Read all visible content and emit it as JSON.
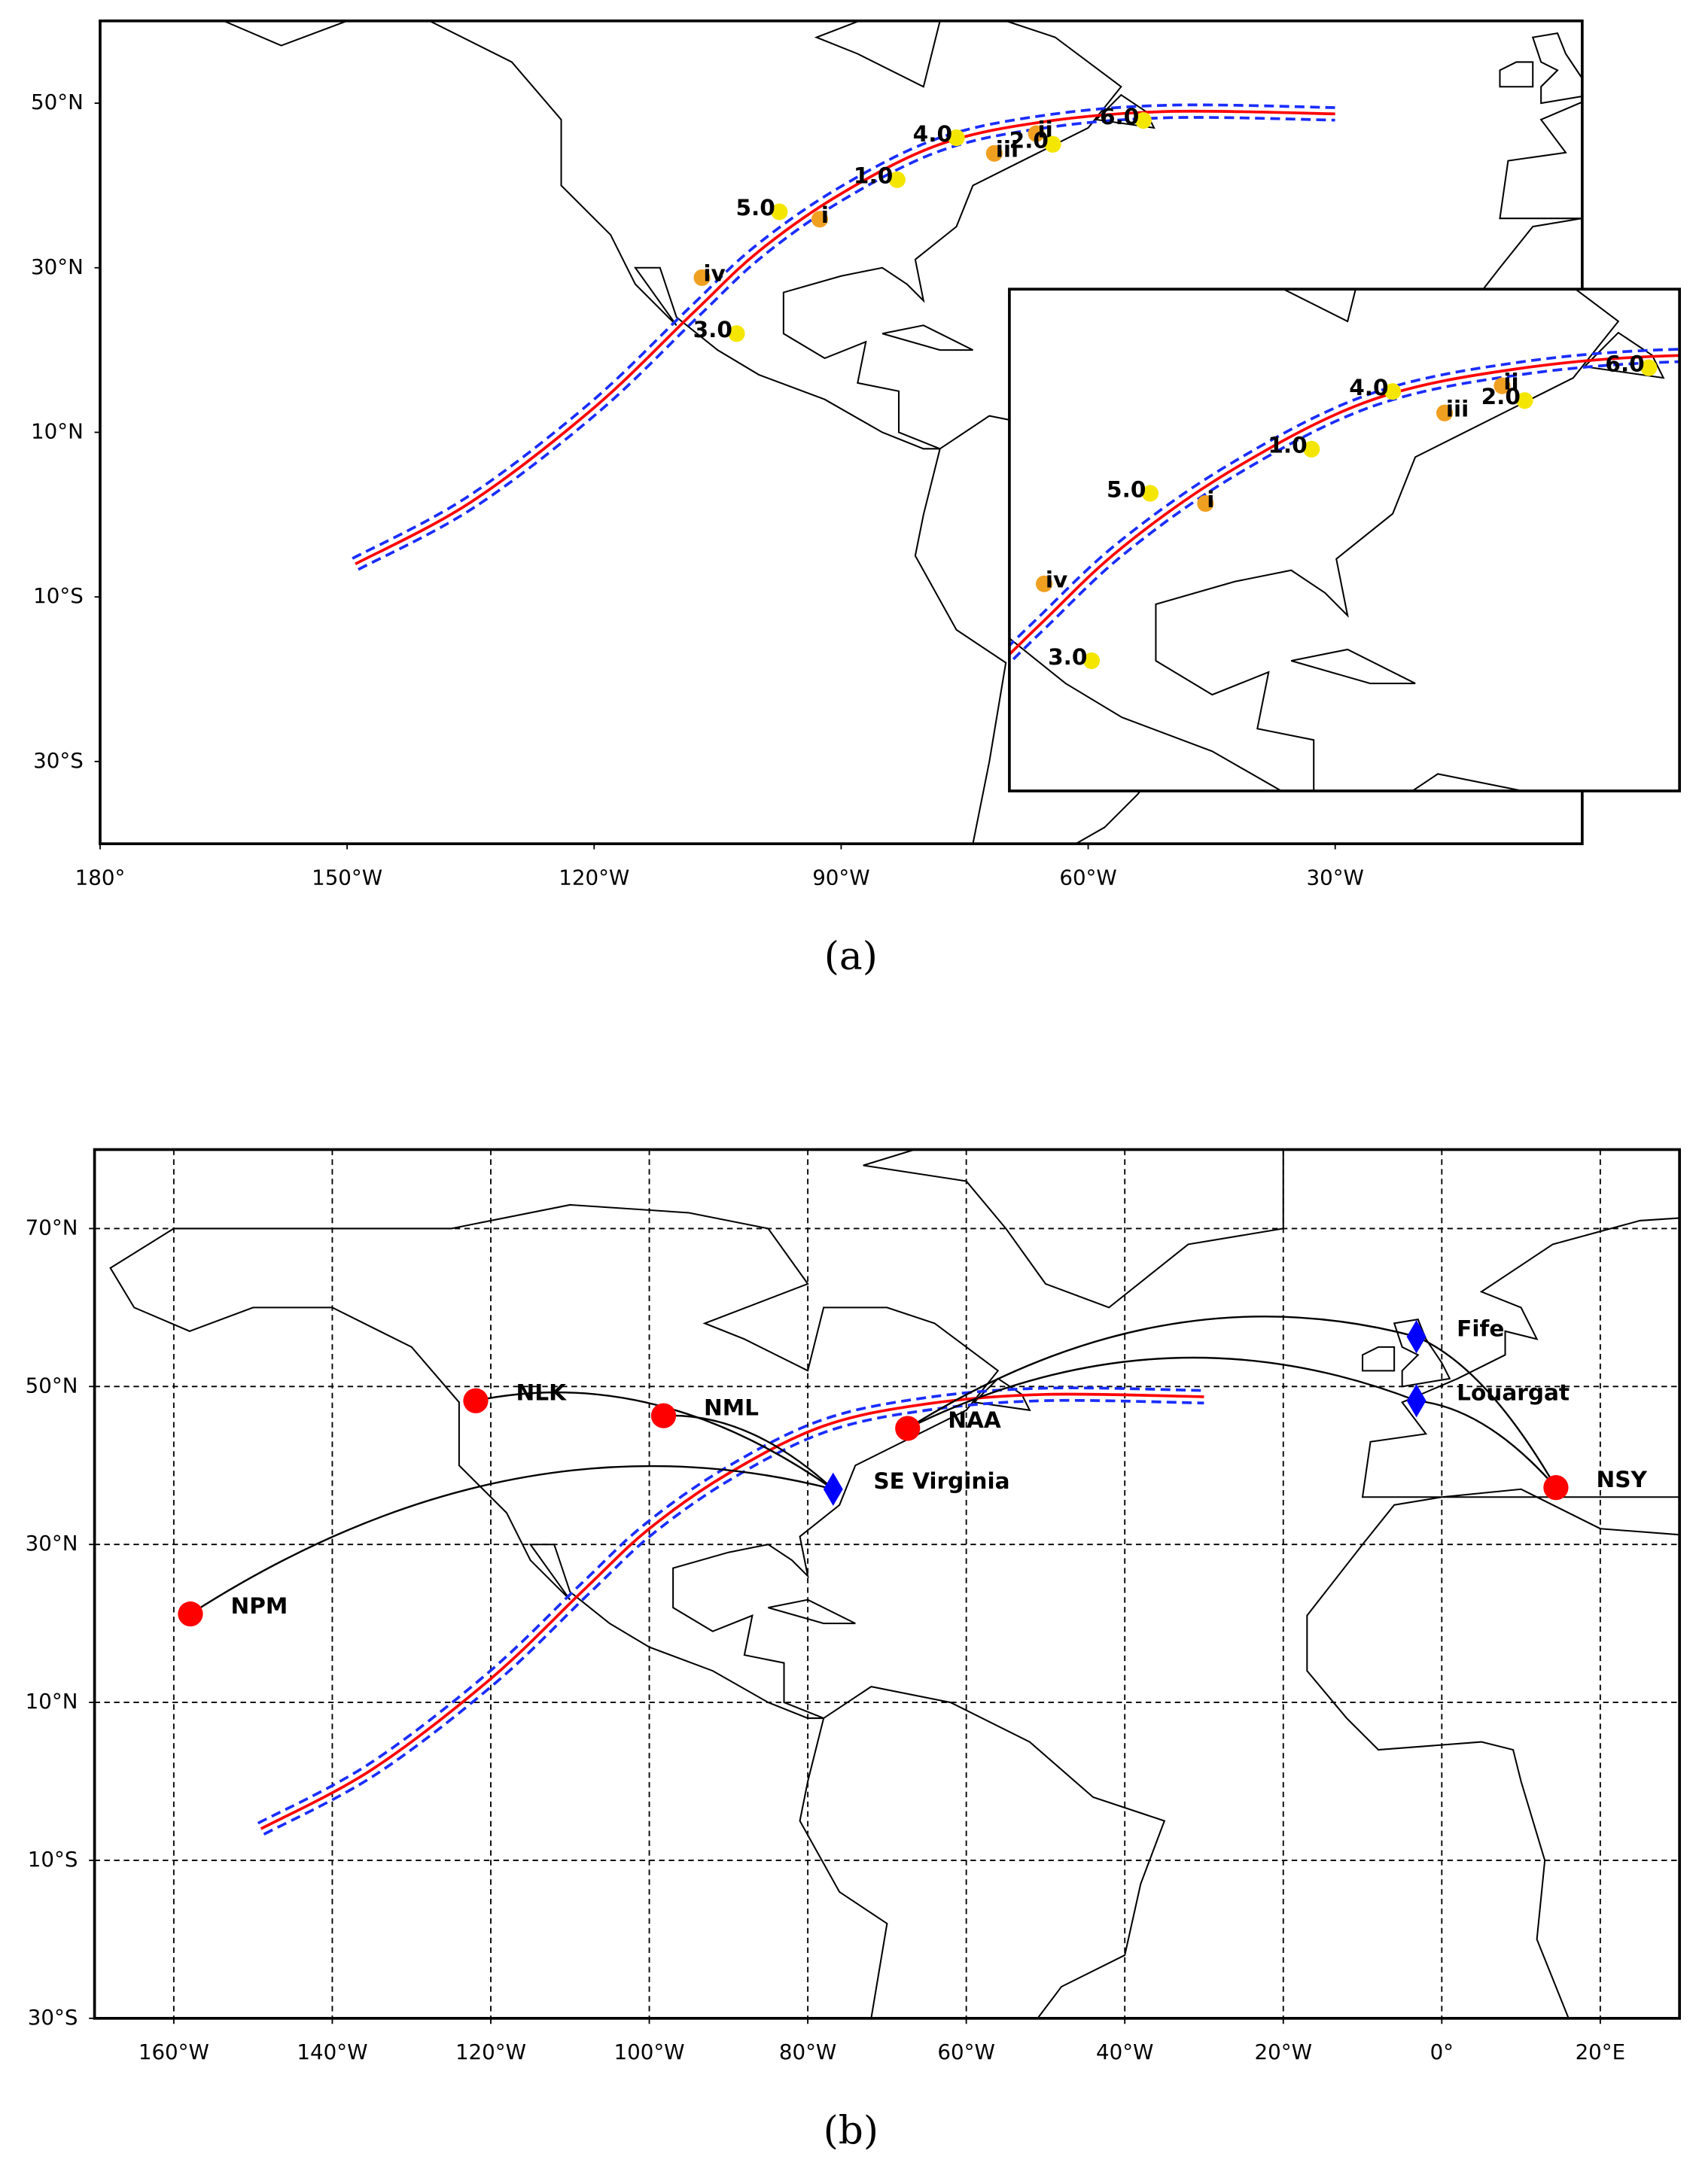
{
  "panels": [
    {
      "caption": "(a)",
      "xlim": [
        -180,
        0
      ],
      "ylim": [
        -40,
        60
      ],
      "xticks": [
        {
          "value": -180,
          "label": "180°"
        },
        {
          "value": -150,
          "label": "150°W"
        },
        {
          "value": -120,
          "label": "120°W"
        },
        {
          "value": -90,
          "label": "90°W"
        },
        {
          "value": -60,
          "label": "60°W"
        },
        {
          "value": -30,
          "label": "30°W"
        }
      ],
      "yticks": [
        {
          "value": 50,
          "label": "50°N"
        },
        {
          "value": 30,
          "label": "30°N"
        },
        {
          "value": 10,
          "label": "10°N"
        },
        {
          "value": -10,
          "label": "10°S"
        },
        {
          "value": -30,
          "label": "30°S"
        }
      ],
      "grid": false,
      "inset": true,
      "curve": {
        "lon": [
          -149,
          -135,
          -120,
          -108,
          -100,
          -90,
          -78,
          -65,
          -50,
          -30
        ],
        "lat": [
          -6,
          1.5,
          13,
          24.5,
          32,
          39,
          45,
          47.8,
          49,
          48.7
        ]
      },
      "points": [
        {
          "label": "iv",
          "lon": -106.9,
          "lat": 28.8,
          "color": "#f0a020"
        },
        {
          "label": "3.0",
          "lon": -102.7,
          "lat": 22.0,
          "color": "#f5e600"
        },
        {
          "label": "5.0",
          "lon": -97.5,
          "lat": 36.8,
          "color": "#f5e600"
        },
        {
          "label": "i",
          "lon": -92.6,
          "lat": 35.9,
          "color": "#f0a020"
        },
        {
          "label": "1.0",
          "lon": -83.2,
          "lat": 40.7,
          "color": "#f5e600"
        },
        {
          "label": "4.0",
          "lon": -76.0,
          "lat": 45.8,
          "color": "#f5e600"
        },
        {
          "label": "iii",
          "lon": -71.4,
          "lat": 43.9,
          "color": "#f0a020"
        },
        {
          "label": "ii",
          "lon": -66.3,
          "lat": 46.3,
          "color": "#f0a020"
        },
        {
          "label": "2.0",
          "lon": -64.3,
          "lat": 45.0,
          "color": "#f5e600"
        },
        {
          "label": "6.0",
          "lon": -53.3,
          "lat": 47.9,
          "color": "#f5e600"
        }
      ]
    },
    {
      "caption": "(b)",
      "xlim": [
        -170,
        30
      ],
      "ylim": [
        -30,
        80
      ],
      "xticks": [
        {
          "value": -160,
          "label": "160°W"
        },
        {
          "value": -140,
          "label": "140°W"
        },
        {
          "value": -120,
          "label": "120°W"
        },
        {
          "value": -100,
          "label": "100°W"
        },
        {
          "value": -80,
          "label": "80°W"
        },
        {
          "value": -60,
          "label": "60°W"
        },
        {
          "value": -40,
          "label": "40°W"
        },
        {
          "value": -20,
          "label": "20°W"
        },
        {
          "value": 0,
          "label": "0°"
        },
        {
          "value": 20,
          "label": "20°E"
        }
      ],
      "yticks": [
        {
          "value": 70,
          "label": "70°N"
        },
        {
          "value": 50,
          "label": "50°N"
        },
        {
          "value": 30,
          "label": "30°N"
        },
        {
          "value": 10,
          "label": "10°N"
        },
        {
          "value": -10,
          "label": "10°S"
        },
        {
          "value": -30,
          "label": "30°S"
        }
      ],
      "grid": true,
      "inset": false,
      "curve": {
        "lon": [
          -149,
          -135,
          -120,
          -108,
          -100,
          -90,
          -78,
          -65,
          -50,
          -30
        ],
        "lat": [
          -6,
          1.5,
          13,
          24.5,
          32,
          39,
          45,
          47.8,
          49,
          48.7
        ]
      },
      "stations": [
        {
          "name": "NPM",
          "lon": -157.9,
          "lat": 21.2,
          "marker": "circle",
          "color": "#ff0000"
        },
        {
          "name": "NLK",
          "lon": -121.9,
          "lat": 48.2,
          "marker": "circle",
          "color": "#ff0000"
        },
        {
          "name": "NML",
          "lon": -98.2,
          "lat": 46.3,
          "marker": "circle",
          "color": "#ff0000"
        },
        {
          "name": "NAA",
          "lon": -67.4,
          "lat": 44.7,
          "marker": "circle",
          "color": "#ff0000"
        },
        {
          "name": "NSY",
          "lon": 14.4,
          "lat": 37.2,
          "marker": "circle",
          "color": "#ff0000"
        },
        {
          "name": "SE Virginia",
          "lon": -76.8,
          "lat": 37.0,
          "marker": "diamond",
          "color": "#0000ff"
        },
        {
          "name": "Fife",
          "lon": -3.2,
          "lat": 56.3,
          "marker": "diamond",
          "color": "#0000ff"
        },
        {
          "name": "Louargat",
          "lon": -3.2,
          "lat": 48.2,
          "marker": "diamond",
          "color": "#0000ff"
        }
      ],
      "links": [
        {
          "from": "NPM",
          "to": "SE Virginia"
        },
        {
          "from": "NLK",
          "to": "SE Virginia"
        },
        {
          "from": "NML",
          "to": "SE Virginia"
        },
        {
          "from": "NAA",
          "to": "Fife"
        },
        {
          "from": "NAA",
          "to": "Louargat"
        },
        {
          "from": "NSY",
          "to": "Fife"
        },
        {
          "from": "NSY",
          "to": "Louargat"
        }
      ]
    }
  ]
}
